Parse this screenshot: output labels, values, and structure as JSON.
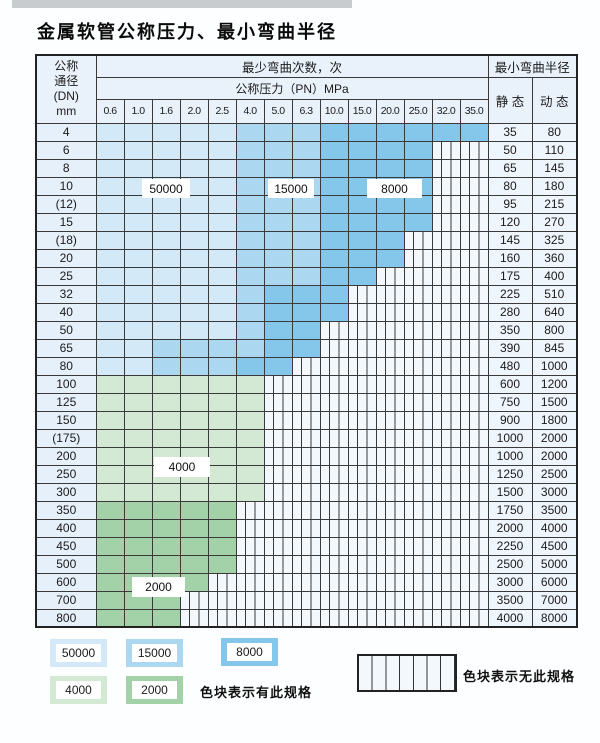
{
  "title": "金属软管公称压力、最小弯曲半径",
  "colors": {
    "c50000": "#d4e9f7",
    "c15000": "#abd7f1",
    "c8000": "#85c6eb",
    "c4000": "#d3e9d4",
    "c2000": "#a3d1a8",
    "hatch-bg": "#f3f8fd",
    "grid": "#3a3a3a",
    "head-bg": "#e9f2fb",
    "dn-bg": "#e6f0fa",
    "sd-bg": "#eef5fc"
  },
  "table": {
    "header": {
      "dn_lines": [
        "公称",
        "通径",
        "(DN)",
        "mm"
      ],
      "bend_cycles_label": "最少弯曲次数，次",
      "pressure_label": "公称压力（PN）MPa",
      "min_bend_radius_label": "最小弯曲半径",
      "static_label": "静 态",
      "dynamic_label": "动 态",
      "pressure_columns": [
        "0.6",
        "1.0",
        "1.6",
        "2.0",
        "2.5",
        "4.0",
        "5.0",
        "6.3",
        "10.0",
        "15.0",
        "20.0",
        "25.0",
        "32.0",
        "35.0"
      ]
    },
    "cell_code_meaning": {
      "L": "50000次",
      "M": "15000次",
      "D": "8000次",
      "A": "4000次",
      "B": "2000次",
      "X": "无此规格"
    },
    "rows": [
      {
        "dn": "4",
        "cells": "LLLLLMMMDDDDDD",
        "static": "35",
        "dynamic": "80"
      },
      {
        "dn": "6",
        "cells": "LLLLLMMMDDDDXX",
        "static": "50",
        "dynamic": "110"
      },
      {
        "dn": "8",
        "cells": "LLLLLMMMDDDDXX",
        "static": "65",
        "dynamic": "145"
      },
      {
        "dn": "10",
        "cells": "LLLLLMMMDDDDXX",
        "static": "80",
        "dynamic": "180"
      },
      {
        "dn": "(12)",
        "cells": "LLLLLMMMDDDDXX",
        "static": "95",
        "dynamic": "215"
      },
      {
        "dn": "15",
        "cells": "LLLLLMMMDDDDXX",
        "static": "120",
        "dynamic": "270"
      },
      {
        "dn": "(18)",
        "cells": "LLLLLMMMDDDXXX",
        "static": "145",
        "dynamic": "325"
      },
      {
        "dn": "20",
        "cells": "LLLLLMMMDDDXXX",
        "static": "160",
        "dynamic": "360"
      },
      {
        "dn": "25",
        "cells": "LLLLLMMMDDXXXX",
        "static": "175",
        "dynamic": "400"
      },
      {
        "dn": "32",
        "cells": "LLLLLMDDDXXXXX",
        "static": "225",
        "dynamic": "510"
      },
      {
        "dn": "40",
        "cells": "LLLLLMDDDXXXXX",
        "static": "280",
        "dynamic": "640"
      },
      {
        "dn": "50",
        "cells": "LLLLLMDDXXXXXX",
        "static": "350",
        "dynamic": "800"
      },
      {
        "dn": "65",
        "cells": "LLMMMMDDXXXXXX",
        "static": "390",
        "dynamic": "845"
      },
      {
        "dn": "80",
        "cells": "LLMMMDDXXXXXXX",
        "static": "480",
        "dynamic": "1000"
      },
      {
        "dn": "100",
        "cells": "AAAAAAXXXXXXXX",
        "static": "600",
        "dynamic": "1200"
      },
      {
        "dn": "125",
        "cells": "AAAAAAXXXXXXXX",
        "static": "750",
        "dynamic": "1500"
      },
      {
        "dn": "150",
        "cells": "AAAAAAXXXXXXXX",
        "static": "900",
        "dynamic": "1800"
      },
      {
        "dn": "(175)",
        "cells": "AAAAAAXXXXXXXX",
        "static": "1000",
        "dynamic": "2000"
      },
      {
        "dn": "200",
        "cells": "AAAAAAXXXXXXXX",
        "static": "1000",
        "dynamic": "2000"
      },
      {
        "dn": "250",
        "cells": "AAAAAAXXXXXXXX",
        "static": "1250",
        "dynamic": "2500"
      },
      {
        "dn": "300",
        "cells": "AAAAAAXXXXXXXX",
        "static": "1500",
        "dynamic": "3000"
      },
      {
        "dn": "350",
        "cells": "BBBBBXXXXXXXXX",
        "static": "1750",
        "dynamic": "3500"
      },
      {
        "dn": "400",
        "cells": "BBBBBXXXXXXXXX",
        "static": "2000",
        "dynamic": "4000"
      },
      {
        "dn": "450",
        "cells": "BBBBBXXXXXXXXX",
        "static": "2250",
        "dynamic": "4500"
      },
      {
        "dn": "500",
        "cells": "BBBBBXXXXXXXXX",
        "static": "2500",
        "dynamic": "5000"
      },
      {
        "dn": "600",
        "cells": "BBBBXXXXXXXXXX",
        "static": "3000",
        "dynamic": "6000"
      },
      {
        "dn": "700",
        "cells": "BBBXXXXXXXXXXX",
        "static": "3500",
        "dynamic": "7000"
      },
      {
        "dn": "800",
        "cells": "BBBXXXXXXXXXXX",
        "static": "4000",
        "dynamic": "8000"
      }
    ]
  },
  "overlays": [
    {
      "text": "50000"
    },
    {
      "text": "15000"
    },
    {
      "text": "8000"
    },
    {
      "text": "4000"
    },
    {
      "text": "2000"
    }
  ],
  "legend": {
    "items": [
      {
        "value": "50000"
      },
      {
        "value": "15000"
      },
      {
        "value": "8000"
      },
      {
        "value": "4000"
      },
      {
        "value": "2000"
      }
    ],
    "has_spec_text": "色块表示有此规格",
    "no_spec_text": "色块表示无此规格"
  }
}
